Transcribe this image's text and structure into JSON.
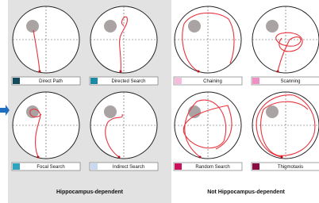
{
  "panels": [
    {
      "label": "Direct Path",
      "color": "#144a5e"
    },
    {
      "label": "Directed Search",
      "color": "#1a8ba3"
    },
    {
      "label": "Chaining",
      "color": "#f6bcdc"
    },
    {
      "label": "Scanning",
      "color": "#f08fc6"
    },
    {
      "label": "Focal Search",
      "color": "#2ea3bd"
    },
    {
      "label": "Indirect Search",
      "color": "#c9d9f2"
    },
    {
      "label": "Random Search",
      "color": "#c8125c"
    },
    {
      "label": "Thigmotaxis",
      "color": "#8a0c42"
    }
  ],
  "groups": [
    "Hippocampus-dependent",
    "Not Hippocampus-dependent"
  ]
}
